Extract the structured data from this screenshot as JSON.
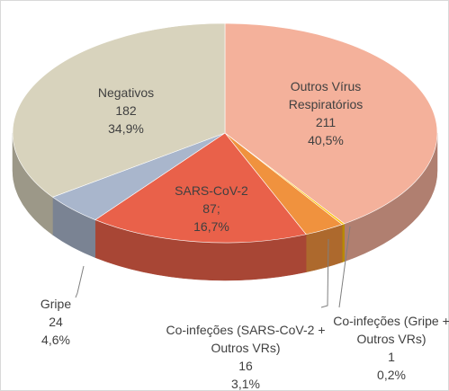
{
  "chart_data": {
    "type": "pie3d",
    "categories": [
      "Outros Vírus Respiratórios",
      "Co-infeções (Gripe + Outros VRs)",
      "Co-infeções (SARS-CoV-2 + Outros VRs)",
      "SARS-CoV-2",
      "Gripe",
      "Negativos"
    ],
    "values": [
      211,
      1,
      16,
      87,
      24,
      182
    ],
    "value_labels": [
      "211",
      "1",
      "16",
      "87;",
      "24",
      "182"
    ],
    "percentages": [
      40.5,
      0.2,
      3.1,
      16.7,
      4.6,
      34.9
    ],
    "percentage_labels": [
      "40,5%",
      "0,2%",
      "3,1%",
      "16,7%",
      "4,6%",
      "34,9%"
    ],
    "colors": [
      "#f4b19b",
      "#ffc000",
      "#f0923e",
      "#e9614a",
      "#a9b6cc",
      "#d8d3bd"
    ]
  }
}
